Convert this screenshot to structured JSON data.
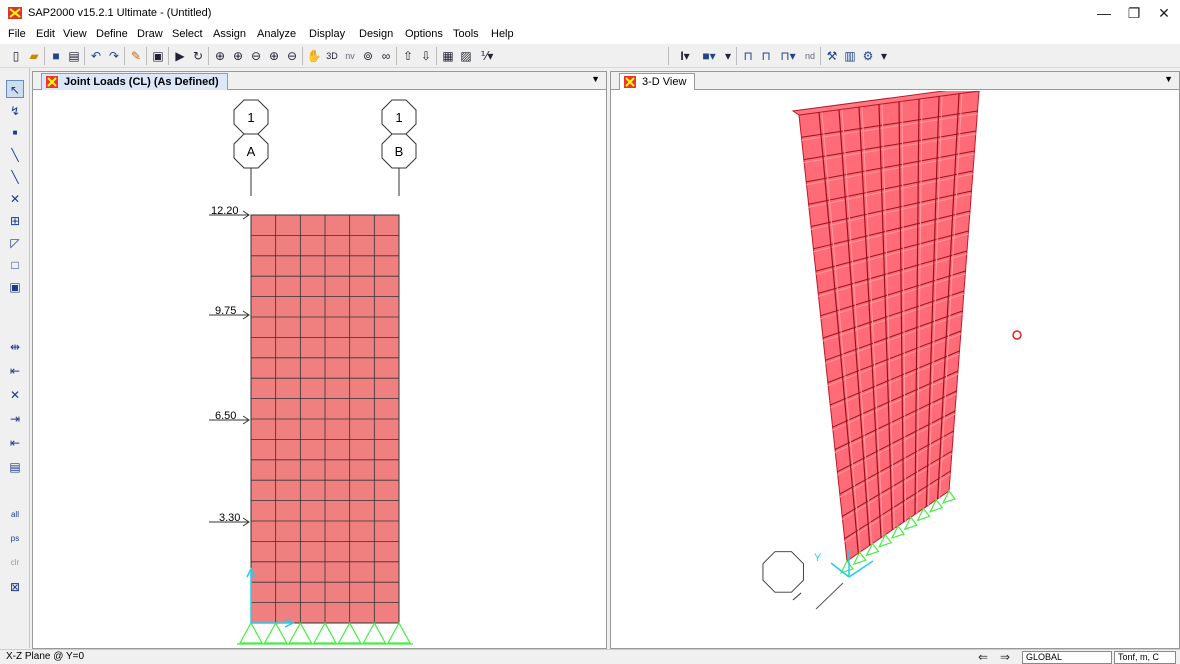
{
  "window": {
    "title": "SAP2000 v15.2.1 Ultimate  - (Untitled)",
    "minimize": "—",
    "restore": "❐",
    "close": "✕"
  },
  "menu": [
    "File",
    "Edit",
    "View",
    "Define",
    "Draw",
    "Select",
    "Assign",
    "Analyze",
    "Display",
    "Design",
    "Options",
    "Tools",
    "Help"
  ],
  "toolbar": {
    "nv_label": "nv",
    "nd_label": "nd"
  },
  "left_panel": {
    "tab_label": "Joint Loads (CL) (As Defined)",
    "grid_bubbles": [
      {
        "top": "1",
        "bottom": "A"
      },
      {
        "top": "1",
        "bottom": "B"
      }
    ],
    "elevations": [
      "12.20",
      "9.75",
      "6.50",
      "3.30"
    ],
    "frame_color": "#f08080",
    "support_color": "#44ee44"
  },
  "right_panel": {
    "tab_label": "3-D View",
    "axis_y": "Y",
    "structure_color": "#ff3b4a",
    "marker_color": "#dd2222"
  },
  "status": {
    "text": "X-Z Plane @ Y=0",
    "coord_system": "GLOBAL",
    "units": "Tonf, m, C"
  },
  "colors": {
    "accent": "#dce8fa",
    "axis": "#22ccee"
  }
}
